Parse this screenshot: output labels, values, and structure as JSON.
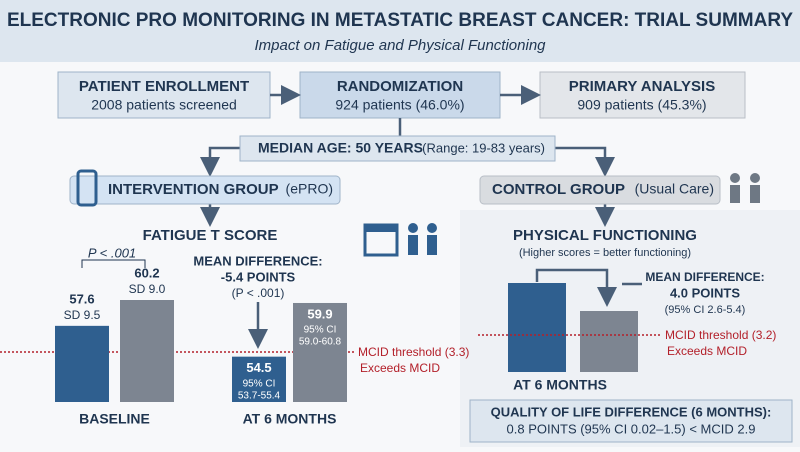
{
  "header": {
    "title": "ELECTRONIC PRO MONITORING IN METASTATIC BREAST CANCER: TRIAL SUMMARY",
    "subtitle": "Impact on Fatigue and Physical Functioning"
  },
  "flow": {
    "enrollment": {
      "title": "PATIENT ENROLLMENT",
      "text": "2008 patients screened"
    },
    "randomization": {
      "title": "RANDOMIZATION",
      "text": "924 patients (46.0%)"
    },
    "primary_analysis": {
      "title": "PRIMARY ANALYSIS",
      "text": "909 patients (45.3%)"
    },
    "median_age": {
      "label": "MEDIAN AGE: 50 YEARS",
      "range": "(Range: 19-83 years)"
    }
  },
  "groups": {
    "intervention": {
      "label": "INTERVENTION GROUP",
      "detail": "(ePRO)"
    },
    "control": {
      "label": "CONTROL GROUP",
      "detail": "(Usual Care)"
    }
  },
  "fatigue": {
    "title": "FATIGUE T SCORE",
    "p_value": "P < .001",
    "groups": [
      {
        "category": "BASELINE",
        "bars": [
          {
            "value": 57.6,
            "note": [
              "SD 9.5"
            ]
          },
          {
            "value": 60.2,
            "note": [
              "SD 9.0"
            ]
          }
        ]
      },
      {
        "category": "AT 6 MONTHS",
        "bars": [
          {
            "value": 54.5,
            "note": [
              "95% CI",
              "53.7-55.4"
            ]
          },
          {
            "value": 59.9,
            "note": [
              "95% CI",
              "59.0-60.8"
            ]
          }
        ]
      }
    ],
    "mean_difference": {
      "label": "MEAN DIFFERENCE:",
      "value": "-5.4 POINTS",
      "p": "(P < .001)"
    },
    "mcid": {
      "threshold": "MCID threshold (3.3)",
      "note": "Exceeds MCID"
    }
  },
  "physical": {
    "title": "PHYSICAL FUNCTIONING",
    "subtitle": "(Higher scores = better functioning)",
    "category": "AT 6 MONTHS",
    "mean_difference": {
      "label": "MEAN DIFFERENCE:",
      "value": "4.0 POINTS",
      "ci": "(95% CI 2.6-5.4)"
    },
    "mcid": {
      "threshold": "MCID threshold (3.2)",
      "note": "Exceeds MCID"
    }
  },
  "quality_of_life": {
    "title": "QUALITY OF LIFE DIFFERENCE (6 MONTHS):",
    "text": "0.8 POINTS (95% CI 0.02–1.5) < MCID 2.9"
  }
}
